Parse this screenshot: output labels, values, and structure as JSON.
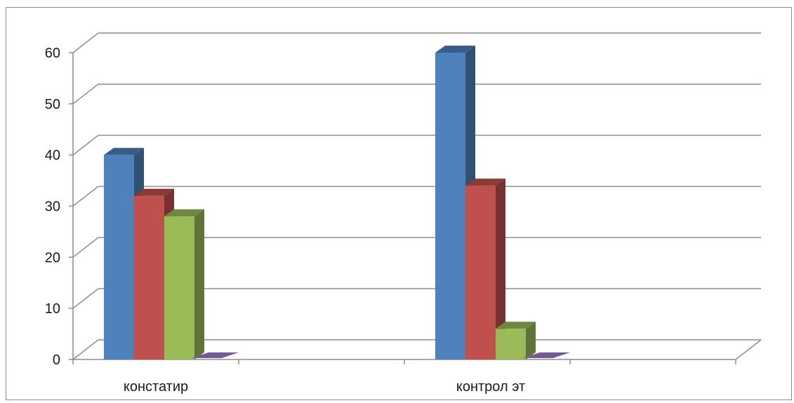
{
  "chart_data": {
    "type": "bar",
    "style": "3d-clustered-column",
    "categories": [
      "констатир",
      "контрол эт"
    ],
    "series": [
      {
        "values": [
          40,
          60
        ],
        "color": "#4F81BD"
      },
      {
        "values": [
          32,
          34
        ],
        "color": "#C0504D"
      },
      {
        "values": [
          28,
          6
        ],
        "color": "#9BBB59"
      },
      {
        "values": [
          0,
          0
        ],
        "color": "#8064A2"
      }
    ],
    "ylim": [
      0,
      60
    ],
    "yticks": [
      0,
      10,
      20,
      30,
      40,
      50,
      60
    ],
    "grid": true,
    "legend": "none"
  }
}
